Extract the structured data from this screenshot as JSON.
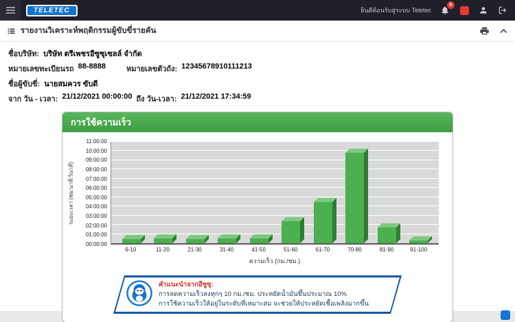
{
  "colors": {
    "brand_blue": "#1273cf",
    "header_dark": "#20202a",
    "card_green": "#4caf50",
    "alert_red": "#e53935",
    "callout_border_blue": "#1259a6"
  },
  "header": {
    "logo_text": "TELETEC",
    "welcome_text": "ยินดีต้อนรับสู่ระบบ Teletec",
    "bell_badge": "6"
  },
  "toolbar": {
    "title": "รายงานวิเคราะห์พฤติกรรมผู้ขับขี่รายคัน"
  },
  "info": {
    "company_label": "ชื่อบริษัท:",
    "company_value": "บริษัท ตรีเพชรอีซูซุเซลล์ จำกัด",
    "plate_label": "หมายเลขทะเบียนรถ",
    "plate_value": "88-8888",
    "chassis_label": "หมายเลขตัวถัง:",
    "chassis_value": "12345678910111213",
    "driver_label": "ชื่อผู้ขับขี่:",
    "driver_value": "นายสมควร ขับดี",
    "from_label": "จาก วัน - เวลา:",
    "from_value": "21/12/2021 00:00:00",
    "to_label": "ถึง วัน-เวลา:",
    "to_value": "21/12/2021 17:34:59"
  },
  "chart_data": {
    "type": "bar",
    "title": "การใช้ความเร็ว",
    "categories": [
      "6-10",
      "11-20",
      "21-30",
      "31-40",
      "41-50",
      "51-60",
      "61-70",
      "70-80",
      "81-90",
      "91-100"
    ],
    "values_hours": [
      0.42,
      0.5,
      0.45,
      0.5,
      0.55,
      2.4,
      4.45,
      9.8,
      1.7,
      0.27
    ],
    "xlabel": "ความเร็ว (กม./ชม.)",
    "ylabel": "ระยะเวลา (ชม:นาที:วินาที)",
    "ylim": [
      0,
      11
    ],
    "ytick_labels": [
      "00:00:00",
      "01:00:00",
      "02:00:00",
      "03:00:00",
      "04:00:00",
      "05:00:00",
      "06:00:00",
      "07:00:00",
      "08:00:00",
      "09:00:00",
      "10:00:00",
      "11:00:00"
    ],
    "grid": true,
    "legend": false,
    "bar_color": "#4caf50"
  },
  "callout": {
    "heading": "คำแนะนำจากอีซูซุ:",
    "line1": "การลดความเร็วลงทุกๆ 10 กม./ชม. ประหยัดน้ำมันขึ้นประมาณ 10%",
    "line2": "การใช้ความเร็วให้อยู่ในระดับที่เหมาะสม จะช่วยให้ประหยัดเชื้อเพลิงมากขึ้น"
  }
}
